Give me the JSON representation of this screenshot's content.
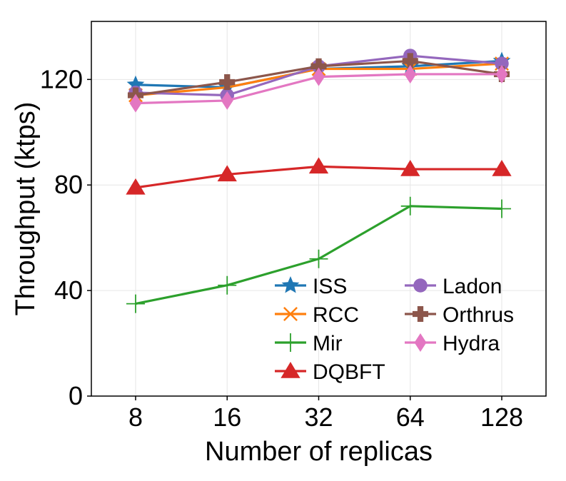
{
  "chart_data": {
    "type": "line",
    "title": "",
    "xlabel": "Number of replicas",
    "ylabel": "Throughput (ktps)",
    "categories": [
      "8",
      "16",
      "32",
      "64",
      "128"
    ],
    "ylim": [
      0,
      142
    ],
    "yticks": [
      0,
      40,
      80,
      120
    ],
    "grid": true,
    "legend_position": "lower-right",
    "series": [
      {
        "name": "ISS",
        "color": "#1f77b4",
        "marker": "star",
        "values": [
          118,
          117,
          124,
          125,
          127
        ]
      },
      {
        "name": "RCC",
        "color": "#ff7f0e",
        "marker": "x",
        "values": [
          114,
          117,
          124,
          124,
          126
        ]
      },
      {
        "name": "Mir",
        "color": "#2ca02c",
        "marker": "plus",
        "values": [
          35,
          42,
          52,
          72,
          71
        ]
      },
      {
        "name": "DQBFT",
        "color": "#d62728",
        "marker": "triangle",
        "values": [
          79,
          84,
          87,
          86,
          86
        ]
      },
      {
        "name": "Ladon",
        "color": "#9467bd",
        "marker": "circle",
        "values": [
          115,
          114,
          125,
          129,
          126
        ]
      },
      {
        "name": "Orthrus",
        "color": "#8c564b",
        "marker": "cross",
        "values": [
          114,
          119,
          125,
          127,
          122
        ]
      },
      {
        "name": "Hydra",
        "color": "#e377c2",
        "marker": "diamond",
        "values": [
          111,
          112,
          121,
          122,
          122
        ]
      }
    ]
  }
}
